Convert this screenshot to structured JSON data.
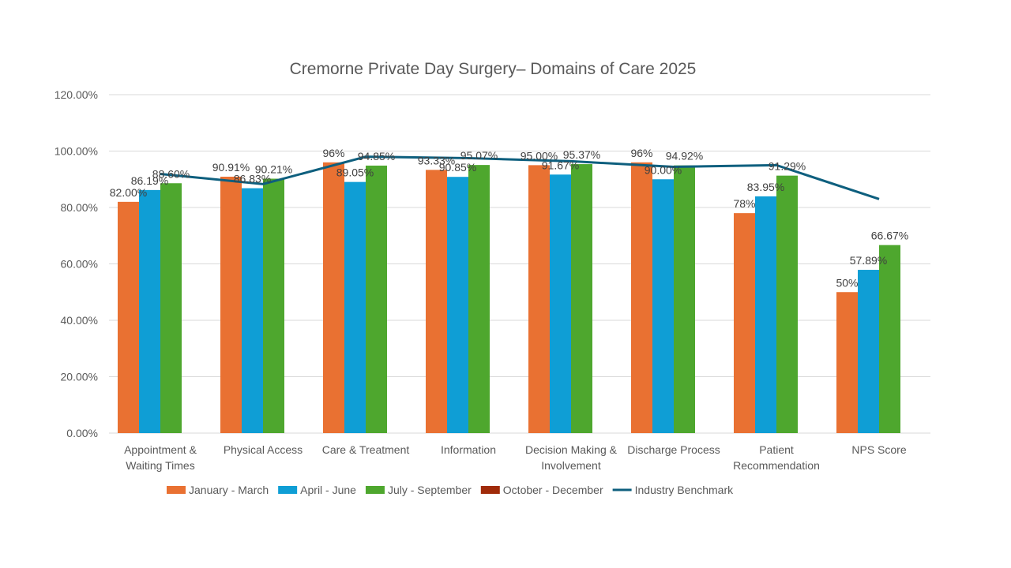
{
  "chart_data": {
    "type": "bar",
    "title": "Cremorne Private Day Surgery– Domains of Care 2025",
    "categories": [
      [
        "Appointment &",
        "Waiting Times"
      ],
      [
        "Physical Access"
      ],
      [
        "Care & Treatment"
      ],
      [
        "Information"
      ],
      [
        "Decision Making &",
        "Involvement"
      ],
      [
        "Discharge Process"
      ],
      [
        "Patient",
        "Recommendation"
      ],
      [
        "NPS Score"
      ]
    ],
    "ylim": [
      0,
      120
    ],
    "yticks": [
      0,
      20,
      40,
      60,
      80,
      100,
      120
    ],
    "ytick_labels": [
      "0.00%",
      "20.00%",
      "40.00%",
      "60.00%",
      "80.00%",
      "100.00%",
      "120.00%"
    ],
    "grid": true,
    "legend_placement": "bottom",
    "series": [
      {
        "name": "January - March",
        "color": "#E97132",
        "values": [
          82.0,
          90.91,
          96,
          93.33,
          95.0,
          96,
          78,
          50
        ],
        "labels": [
          "82.00%",
          "90.91%",
          "96%",
          "93.33%",
          "95.00%",
          "96%",
          "78%",
          "50%"
        ]
      },
      {
        "name": "April - June",
        "color": "#0F9ED5",
        "values": [
          86.19,
          86.83,
          89.05,
          90.85,
          91.67,
          90.0,
          83.95,
          57.89
        ],
        "labels": [
          "86.19%",
          "86.83%",
          "89.05%",
          "90.85%",
          "91.67%",
          "90.00%",
          "83.95%",
          "57.89%"
        ]
      },
      {
        "name": "July - September",
        "color": "#4EA72E",
        "values": [
          88.6,
          90.21,
          94.85,
          95.07,
          95.37,
          94.92,
          91.29,
          66.67
        ],
        "labels": [
          "88.60%",
          "90.21%",
          "94.85%",
          "95.07%",
          "95.37%",
          "94.92%",
          "91.29%",
          "66.67%"
        ]
      },
      {
        "name": "October - December",
        "color": "#A02B0A",
        "values": [
          null,
          null,
          null,
          null,
          null,
          null,
          null,
          null
        ],
        "labels": []
      }
    ],
    "line_series": {
      "name": "Industry Benchmark",
      "color": "#0E5F7E",
      "type": "line",
      "values": [
        91.9,
        88.3,
        98,
        97.5,
        96.4,
        94.4,
        95,
        83
      ]
    }
  }
}
